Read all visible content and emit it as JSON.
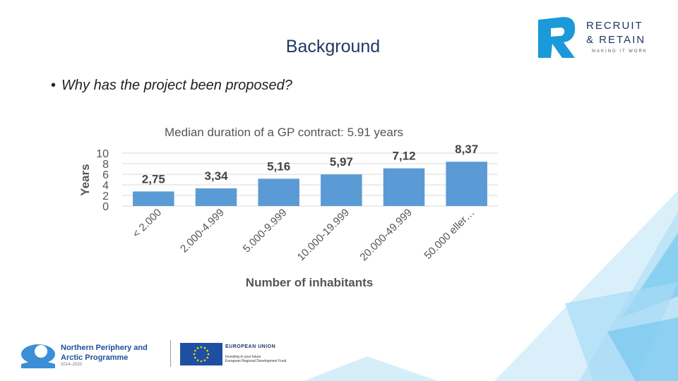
{
  "slide": {
    "title": "Background",
    "bullet": "Why has the project been proposed?"
  },
  "logo_recruit": {
    "line1": "RECRUIT",
    "line2": "& RETAIN",
    "tagline": "MAKING IT WORK"
  },
  "footer": {
    "npa_name_line1": "Northern Periphery and",
    "npa_name_line2": "Arctic Programme",
    "npa_years": "2014–2020",
    "eu_title": "EUROPEAN UNION",
    "eu_sub_line1": "Investing in your future",
    "eu_sub_line2": "European Regional Development Fund"
  },
  "colors": {
    "bar": "#5b9bd5",
    "title": "#1f3864",
    "deco_light": "#bfe3f7",
    "deco_mid": "#7ccbef",
    "logo_blue": "#1a9ad8"
  },
  "chart_data": {
    "type": "bar",
    "title": "Median duration of a GP contract: 5.91 years",
    "xlabel": "Number of inhabitants",
    "ylabel": "Years",
    "categories": [
      "< 2.000",
      "2.000-4.999",
      "5.000-9.999",
      "10.000-19.999",
      "20.000-49.999",
      "50.000 eller…"
    ],
    "values": [
      2.75,
      3.34,
      5.16,
      5.97,
      7.12,
      8.37
    ],
    "data_labels": [
      "2,75",
      "3,34",
      "5,16",
      "5,97",
      "7,12",
      "8,37"
    ],
    "ylim": [
      0,
      10
    ],
    "yticks": [
      "0",
      "2",
      "4",
      "6",
      "8",
      "10"
    ],
    "grid": true
  }
}
